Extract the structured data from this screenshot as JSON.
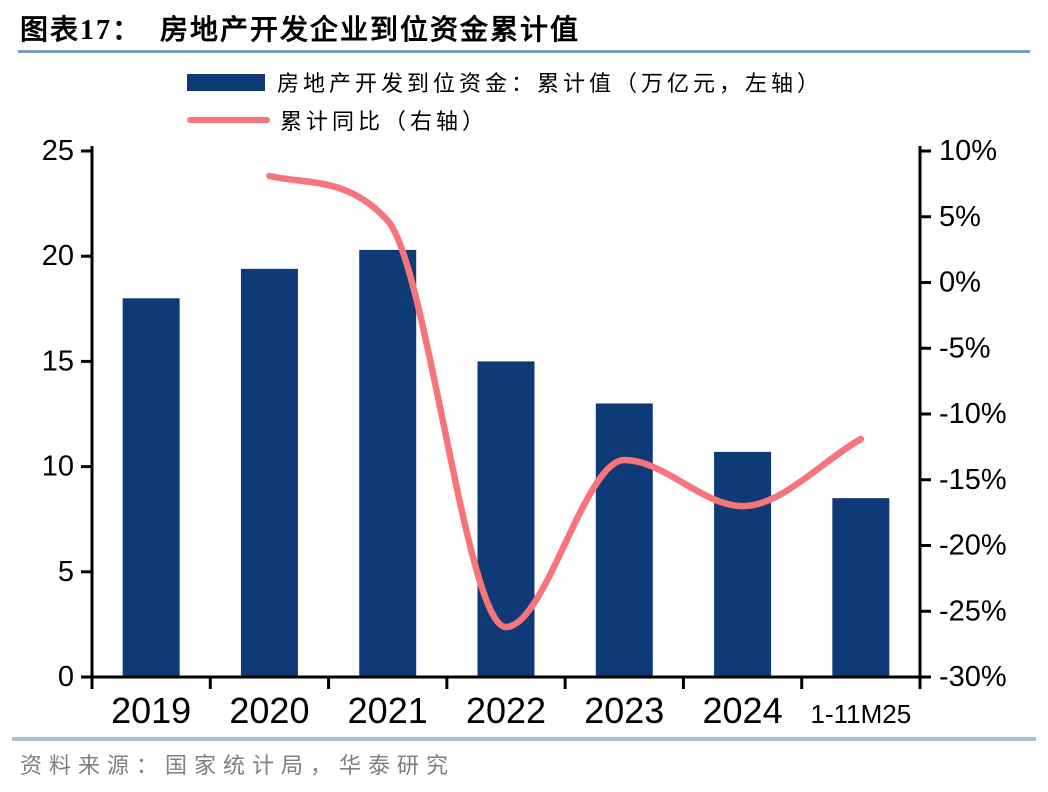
{
  "page": {
    "title": "图表17：  房地产开发企业到位资金累计值",
    "source": "资料来源：国家统计局，华泰研究",
    "colors": {
      "bar": "#0f3a78",
      "line": "#f7757a",
      "title_rule": "#7d9cbe",
      "footer_rule": "#aabdd3",
      "source_text": "#7f7f7f",
      "axis": "#000000"
    }
  },
  "legend": {
    "items": [
      {
        "label": "房地产开发到位资金：累计值（万亿元，左轴）",
        "type": "bar"
      },
      {
        "label": "累计同比（右轴）",
        "type": "line"
      }
    ]
  },
  "chart_data": {
    "type": "bar+line",
    "title": "房地产开发企业到位资金累计值",
    "categories": [
      "2019",
      "2020",
      "2021",
      "2022",
      "2023",
      "2024",
      "1-11M25"
    ],
    "series": [
      {
        "name": "房地产开发到位资金：累计值（万亿元，左轴）",
        "type": "bar",
        "axis": "left",
        "values": [
          18.0,
          19.4,
          20.3,
          15.0,
          13.0,
          10.7,
          8.5
        ]
      },
      {
        "name": "累计同比（右轴）",
        "type": "line",
        "axis": "right",
        "values": [
          null,
          8.1,
          4.7,
          -26.2,
          -13.5,
          -17.0,
          -11.9
        ]
      }
    ],
    "left_axis": {
      "min": 0,
      "max": 25,
      "step": 5,
      "tick_labels": [
        "0",
        "5",
        "10",
        "15",
        "20",
        "25"
      ]
    },
    "right_axis": {
      "min": -30,
      "max": 10,
      "step": 5,
      "tick_labels": [
        "10%",
        "5%",
        "0%",
        "-5%",
        "-10%",
        "-15%",
        "-20%",
        "-25%",
        "-30%"
      ]
    },
    "grid": false,
    "legend_position": "top-left"
  }
}
